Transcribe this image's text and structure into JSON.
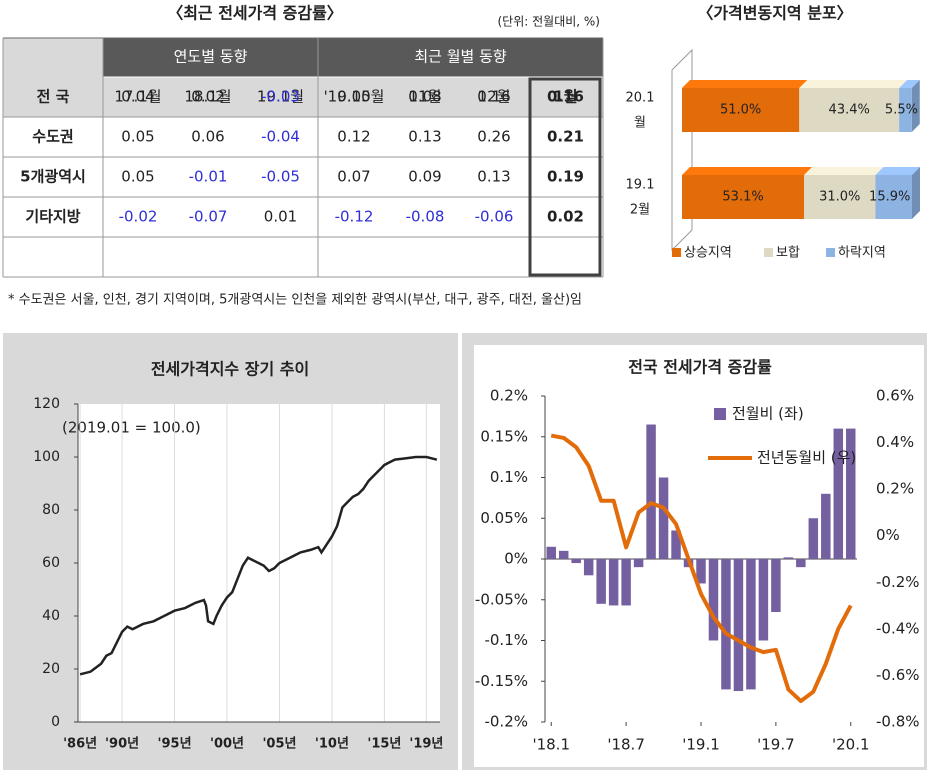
{
  "table": {
    "title": "〈최근 전세가격 증감률〉",
    "unit": "(단위: 전월대비, %)",
    "group_headers": [
      "연도별 동향",
      "최근 월별 동향"
    ],
    "columns": [
      "17.1월",
      "18.1월",
      "19.1월",
      "'19.10월",
      "11월",
      "12월",
      "1월"
    ],
    "rows": [
      {
        "label": "전 국",
        "values": [
          0.04,
          0.02,
          -0.03,
          0.05,
          0.08,
          0.16,
          0.16
        ]
      },
      {
        "label": "수도권",
        "values": [
          0.05,
          0.06,
          -0.04,
          0.12,
          0.13,
          0.26,
          0.21
        ]
      },
      {
        "label": "5개광역시",
        "values": [
          0.05,
          -0.01,
          -0.05,
          0.07,
          0.09,
          0.13,
          0.19
        ]
      },
      {
        "label": "기타지방",
        "values": [
          -0.02,
          -0.07,
          0.01,
          -0.12,
          -0.08,
          -0.06,
          0.02
        ]
      }
    ]
  },
  "footnote": "* 수도권은 서울, 인천, 경기 지역이며, 5개광역시는 인천을 제외한 광역시(부산, 대구, 광주, 대전, 울산)임",
  "chart_data": [
    {
      "type": "stacked_bar_horizontal",
      "title": "〈가격변동지역 분포〉",
      "categories": [
        [
          "20.1",
          "월"
        ],
        [
          "19.1",
          "2월"
        ]
      ],
      "xlim": [
        0,
        100
      ],
      "series": [
        {
          "name": "상승지역",
          "color": "#e36c0a",
          "values": [
            51.0,
            53.1
          ],
          "value_labels": [
            "51.0%",
            "53.1%"
          ]
        },
        {
          "name": "보합",
          "color": "#ddd9c3",
          "values": [
            43.4,
            31.0
          ],
          "value_labels": [
            "43.4%",
            "31.0%"
          ]
        },
        {
          "name": "하락지역",
          "color": "#8db3e2",
          "values": [
            5.5,
            15.9
          ],
          "value_labels": [
            "5.5%",
            "15.9%"
          ]
        }
      ]
    },
    {
      "type": "line",
      "title": "전세가격지수 장기 추이",
      "annotation": "(2019.01 = 100.0)",
      "color": "#222222",
      "x": [
        1986,
        1987,
        1988,
        1988.5,
        1989,
        1989.5,
        1990,
        1990.5,
        1991,
        1992,
        1993,
        1994,
        1995,
        1996,
        1997,
        1997.8,
        1998,
        1998.2,
        1998.7,
        1999,
        1999.5,
        2000,
        2000.5,
        2001,
        2001.5,
        2002,
        2002.5,
        2003,
        2003.5,
        2004,
        2004.5,
        2005,
        2006,
        2007,
        2008,
        2008.7,
        2009,
        2009.5,
        2010,
        2010.5,
        2011,
        2011.5,
        2012,
        2012.5,
        2013,
        2013.5,
        2014,
        2014.5,
        2015,
        2015.5,
        2016,
        2017,
        2018,
        2018.5,
        2019,
        2019.5,
        2020
      ],
      "values": [
        18,
        19,
        22,
        25,
        26,
        30,
        34,
        36,
        35,
        37,
        38,
        40,
        42,
        43,
        45,
        46,
        44,
        38,
        37,
        40,
        44,
        47,
        49,
        54,
        59,
        62,
        61,
        60,
        59,
        57,
        58,
        60,
        62,
        64,
        65,
        66,
        64,
        67,
        70,
        74,
        81,
        83,
        85,
        86,
        88,
        91,
        93,
        95,
        97,
        98,
        99,
        99.5,
        100,
        100,
        100,
        99.5,
        99
      ],
      "xlim": [
        1985.8,
        2020.3
      ],
      "xticks": [
        {
          "value": 1986,
          "label": "'86년"
        },
        {
          "value": 1990,
          "label": "'90년"
        },
        {
          "value": 1995,
          "label": "'95년"
        },
        {
          "value": 2000,
          "label": "'00년"
        },
        {
          "value": 2005,
          "label": "'05년"
        },
        {
          "value": 2010,
          "label": "'10년"
        },
        {
          "value": 2015,
          "label": "'15년"
        },
        {
          "value": 2019,
          "label": "'19년"
        }
      ],
      "ylim": [
        0,
        120
      ],
      "yticks": [
        0,
        20,
        40,
        60,
        80,
        100,
        120
      ]
    },
    {
      "type": "bar_line",
      "title": "전국 전세가격 증감률",
      "categories": [
        "'18.1",
        null,
        null,
        null,
        null,
        null,
        "'18.7",
        null,
        null,
        null,
        null,
        null,
        "'19.1",
        null,
        null,
        null,
        null,
        null,
        "'19.7",
        null,
        null,
        null,
        null,
        null,
        "'20.1"
      ],
      "series": [
        {
          "name": "전월비 (좌)",
          "color": "#7460a0",
          "axis": "y",
          "values": [
            0.015,
            0.01,
            -0.005,
            -0.02,
            -0.055,
            -0.057,
            -0.057,
            -0.01,
            0.165,
            0.1,
            0.035,
            -0.01,
            -0.03,
            -0.1,
            -0.16,
            -0.162,
            -0.16,
            -0.1,
            -0.065,
            0.002,
            -0.01,
            0.05,
            0.08,
            0.16,
            0.16
          ]
        },
        {
          "name": "전년동월비 (우)",
          "color": "#e36c0a",
          "axis": "y2",
          "values": [
            0.43,
            0.42,
            0.38,
            0.3,
            0.15,
            0.15,
            -0.05,
            0.1,
            0.14,
            0.12,
            0.05,
            -0.1,
            -0.25,
            -0.35,
            -0.42,
            -0.45,
            -0.48,
            -0.5,
            -0.49,
            -0.66,
            -0.71,
            -0.67,
            -0.55,
            -0.4,
            -0.3
          ]
        }
      ],
      "ylim": [
        -0.2,
        0.2
      ],
      "yticks": [
        {
          "value": 0.2,
          "label": "0.2%"
        },
        {
          "value": 0.15,
          "label": "0.15%"
        },
        {
          "value": 0.1,
          "label": "0.1%"
        },
        {
          "value": 0.05,
          "label": "0.05%"
        },
        {
          "value": 0,
          "label": "0%"
        },
        {
          "value": -0.05,
          "label": "-0.05%"
        },
        {
          "value": -0.1,
          "label": "-0.1%"
        },
        {
          "value": -0.15,
          "label": "-0.15%"
        },
        {
          "value": -0.2,
          "label": "-0.2%"
        }
      ],
      "y2lim": [
        -0.8,
        0.6
      ],
      "y2ticks": [
        {
          "value": 0.6,
          "label": "0.6%"
        },
        {
          "value": 0.4,
          "label": "0.4%"
        },
        {
          "value": 0.2,
          "label": "0.2%"
        },
        {
          "value": 0,
          "label": "0%"
        },
        {
          "value": -0.2,
          "label": "-0.2%"
        },
        {
          "value": -0.4,
          "label": "-0.4%"
        },
        {
          "value": -0.6,
          "label": "-0.6%"
        },
        {
          "value": -0.8,
          "label": "-0.8%"
        }
      ]
    }
  ]
}
